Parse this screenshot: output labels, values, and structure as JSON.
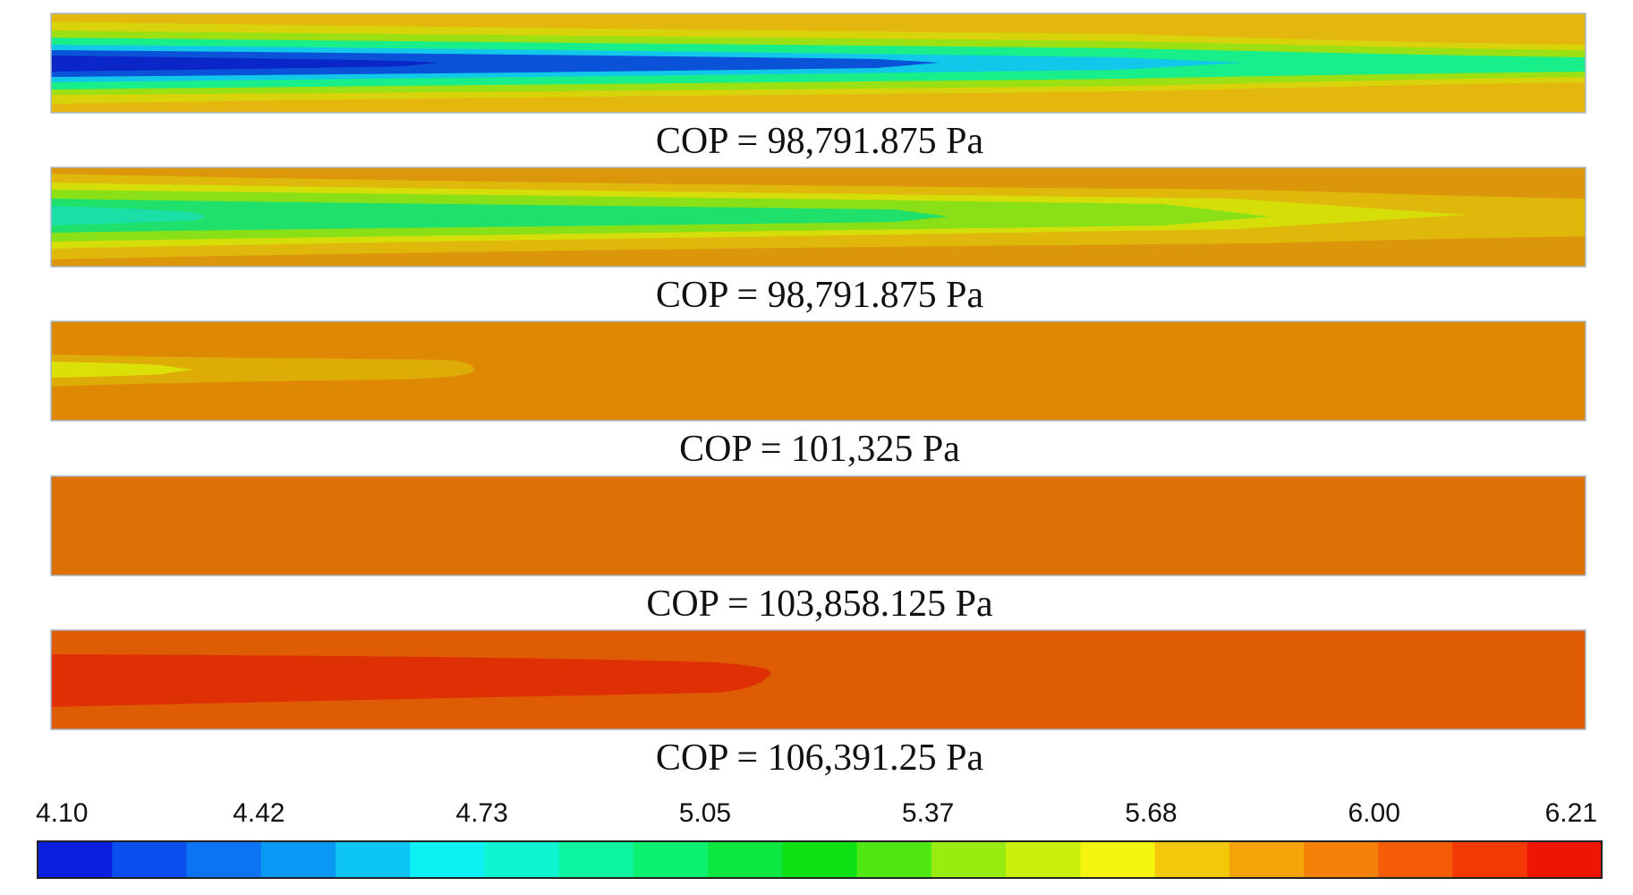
{
  "chart_data": {
    "type": "heatmap",
    "title": "",
    "colorbar": {
      "min": 4.1,
      "max": 6.21,
      "tick_labels": [
        "4.10",
        "4.42",
        "4.73",
        "5.05",
        "5.37",
        "5.68",
        "6.00",
        "6.21"
      ],
      "colors": [
        "#0a1fe0",
        "#0b4ff0",
        "#0c74f4",
        "#0b98f4",
        "#0cc4f4",
        "#0cf1f4",
        "#0cf4d0",
        "#0cf4a0",
        "#0cf070",
        "#0ce640",
        "#0ce012",
        "#50e812",
        "#98ec10",
        "#c8f00c",
        "#f4f40c",
        "#f4c808",
        "#f4a408",
        "#f48008",
        "#f45c08",
        "#f43806",
        "#ee1406"
      ]
    },
    "panels": [
      {
        "caption": "COP = 98,791.875 Pa",
        "pressure_pa": 98791.875,
        "background_value": 5.81,
        "core_value": 4.1,
        "color_bands": [
          "#e4b70e",
          "#d8d30a",
          "#9ae012",
          "#18ee8a",
          "#12c8ea",
          "#0a52d8",
          "#0a26c8"
        ]
      },
      {
        "caption": "COP = 98,791.875 Pa",
        "pressure_pa": 98791.875,
        "background_value": 5.89,
        "core_value": 4.73,
        "color_bands": [
          "#dc960a",
          "#e0b80c",
          "#d6de0a",
          "#8ae016",
          "#1ee06a",
          "#1ae0a8"
        ]
      },
      {
        "caption": "COP = 101,325 Pa",
        "pressure_pa": 101325,
        "background_value": 5.92,
        "core_value": 5.55,
        "color_bands": [
          "#de8804",
          "#ddac07",
          "#dbe108"
        ]
      },
      {
        "caption": "COP = 103,858.125 Pa",
        "pressure_pa": 103858.125,
        "background_value": 6.0,
        "core_value": 6.0,
        "color_bands": [
          "#de7005"
        ]
      },
      {
        "caption": "COP = 106,391.25 Pa",
        "pressure_pa": 106391.25,
        "background_value": 6.05,
        "core_value": 6.15,
        "color_bands": [
          "#de5c04",
          "#de3004"
        ]
      }
    ]
  }
}
